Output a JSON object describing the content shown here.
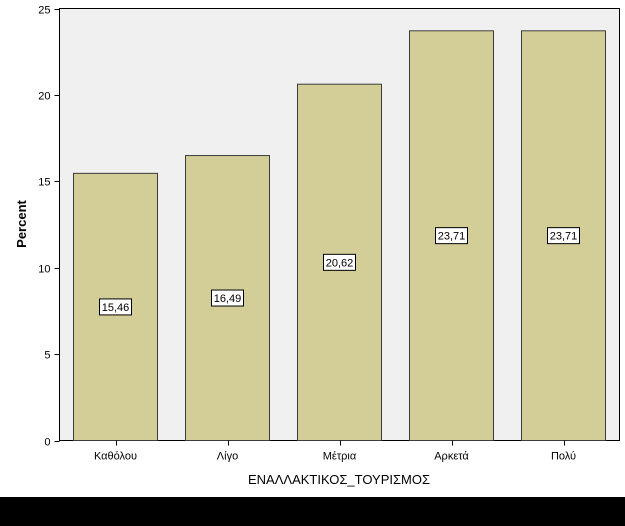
{
  "chart_data": {
    "type": "bar",
    "categories": [
      "Καθόλου",
      "Λίγο",
      "Μέτρια",
      "Αρκετά",
      "Πολύ"
    ],
    "values": [
      15.46,
      16.49,
      20.62,
      23.71,
      23.71
    ],
    "data_labels": [
      "15,46",
      "16,49",
      "20,62",
      "23,71",
      "23,71"
    ],
    "xlabel": "ΕΝΑΛΛΑΚΤΙΚΟΣ_ΤΟΥΡΙΣΜΟΣ",
    "ylabel": "Percent",
    "ylim": [
      0,
      25
    ],
    "yticks": [
      0,
      5,
      10,
      15,
      20,
      25
    ],
    "grid": false,
    "colors": {
      "bar_fill": "#d3ce97",
      "bar_stroke": "#3c3c3c",
      "plot_bg": "#f0f0f0",
      "frame": "#000000",
      "label_box_bg": "#ffffff"
    }
  }
}
